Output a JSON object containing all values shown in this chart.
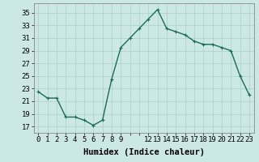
{
  "x": [
    0,
    1,
    2,
    3,
    4,
    5,
    6,
    7,
    8,
    9,
    10,
    11,
    12,
    13,
    14,
    15,
    16,
    17,
    18,
    19,
    20,
    21,
    22,
    23
  ],
  "y": [
    22.5,
    21.5,
    21.5,
    18.5,
    18.5,
    18.0,
    17.2,
    18.0,
    24.5,
    29.5,
    31.0,
    32.5,
    34.0,
    35.5,
    32.5,
    32.0,
    31.5,
    30.5,
    30.0,
    30.0,
    29.5,
    29.0,
    25.0,
    22.0
  ],
  "line_color": "#1a6b5a",
  "marker": "+",
  "marker_size": 3,
  "bg_color": "#cce8e4",
  "grid_color": "#aacfca",
  "xlabel": "Humidex (Indice chaleur)",
  "xlim": [
    -0.5,
    23.5
  ],
  "ylim": [
    16.0,
    36.5
  ],
  "yticks": [
    17,
    19,
    21,
    23,
    25,
    27,
    29,
    31,
    33,
    35
  ],
  "xlabel_fontsize": 7.5,
  "tick_fontsize": 6.5,
  "line_width": 1.0
}
